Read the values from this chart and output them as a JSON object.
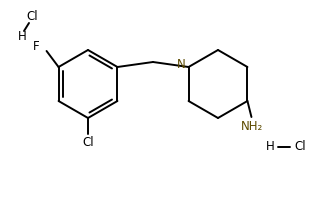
{
  "background_color": "#ffffff",
  "bond_color": "#000000",
  "atom_color_N": "#5c4a00",
  "atom_color_NH2": "#5c4a00",
  "figsize": [
    3.3,
    1.99
  ],
  "dpi": 100,
  "label_F": "F",
  "label_Cl_sub": "Cl",
  "label_N": "N",
  "label_NH2": "NH₂",
  "label_H": "H",
  "label_Cl_salt": "Cl"
}
